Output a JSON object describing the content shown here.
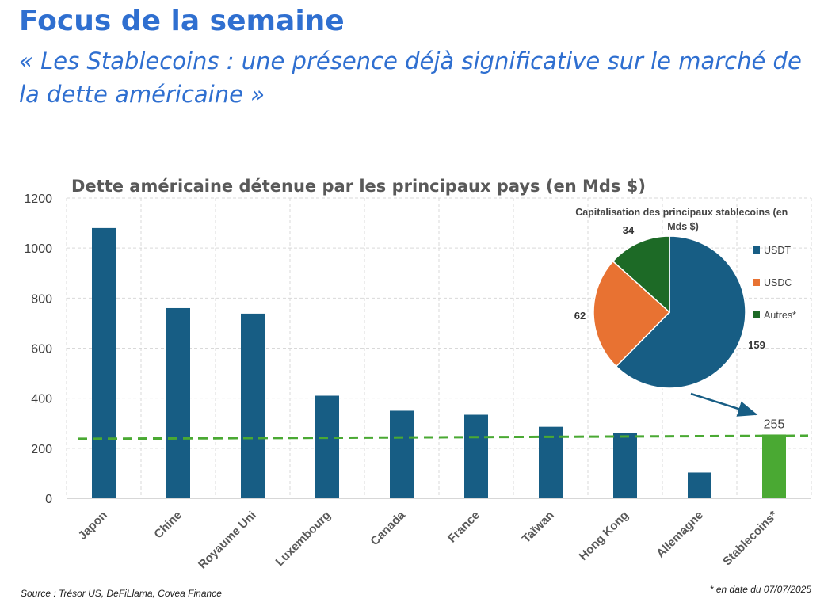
{
  "header": {
    "title": "Focus de la semaine",
    "subtitle": "« Les Stablecoins : une présence déjà significative sur le marché de la dette américaine »"
  },
  "chart_data": [
    {
      "type": "bar",
      "title": "Dette américaine détenue par les principaux pays (en Mds $)",
      "categories": [
        "Japon",
        "Chine",
        "Royaume Uni",
        "Luxembourg",
        "Canada",
        "France",
        "Taïwan",
        "Hong Kong",
        "Allemagne",
        "Stablecoins*"
      ],
      "values": [
        1080,
        760,
        738,
        410,
        350,
        334,
        286,
        260,
        103,
        255
      ],
      "colors": [
        "#175d84",
        "#175d84",
        "#175d84",
        "#175d84",
        "#175d84",
        "#175d84",
        "#175d84",
        "#175d84",
        "#175d84",
        "#4aa933"
      ],
      "data_labels": [
        {
          "category": "Stablecoins*",
          "text": "255"
        }
      ],
      "reference_line": {
        "value": 244,
        "color": "#4aa933",
        "style": "dashed"
      },
      "ylim": [
        0,
        1200
      ],
      "yticks": [
        0,
        200,
        400,
        600,
        800,
        1000,
        1200
      ],
      "grid": true
    },
    {
      "type": "pie",
      "title": "Capitalisation des principaux stablecoins (en Mds $)",
      "labels": [
        "USDT",
        "USDC",
        "Autres*"
      ],
      "values": [
        159,
        62,
        34
      ],
      "colors": [
        "#175d84",
        "#e87232",
        "#1d6a26"
      ],
      "legend_position": "right"
    }
  ],
  "footer": {
    "source": "Source : Trésor US, DeFiLlama, Covea Finance",
    "note": "* en date du 07/07/2025"
  }
}
